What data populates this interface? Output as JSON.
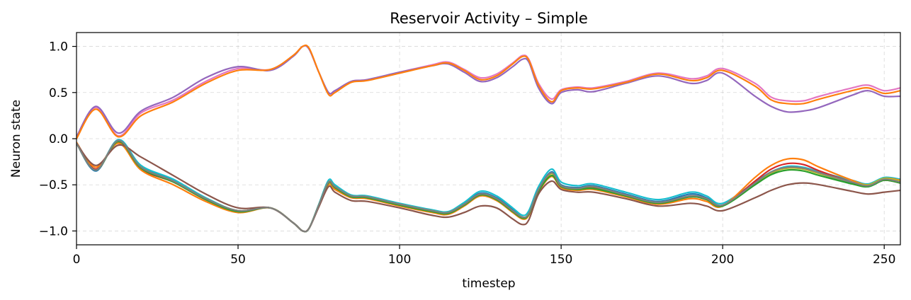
{
  "chart_data": {
    "type": "line",
    "title": "Reservoir Activity – Simple",
    "xlabel": "timestep",
    "ylabel": "Neuron state",
    "xlim": [
      0,
      255
    ],
    "ylim": [
      -1.15,
      1.15
    ],
    "xticks": [
      0,
      50,
      100,
      150,
      200,
      250
    ],
    "xtick_labels": [
      "0",
      "50",
      "100",
      "150",
      "200",
      "250"
    ],
    "yticks": [
      1.0,
      0.5,
      0.0,
      -0.5,
      -1.0
    ],
    "ytick_labels": [
      "1.0",
      "0.5",
      "0.0",
      "−0.5",
      "−1.0"
    ],
    "grid": true,
    "series": [
      {
        "color": "#e377c2",
        "x": [
          0,
          6,
          13,
          20,
          30,
          40,
          50,
          60,
          67,
          70,
          72,
          75,
          78,
          80,
          85,
          90,
          100,
          110,
          115,
          120,
          125,
          130,
          135,
          138,
          140,
          143,
          147,
          150,
          155,
          160,
          170,
          180,
          190,
          195,
          200,
          210,
          215,
          220,
          225,
          230,
          240,
          245,
          250,
          255
        ],
        "y": [
          0.02,
          0.34,
          0.03,
          0.28,
          0.42,
          0.62,
          0.76,
          0.75,
          0.9,
          1.0,
          0.97,
          0.72,
          0.5,
          0.52,
          0.62,
          0.64,
          0.72,
          0.8,
          0.83,
          0.75,
          0.66,
          0.7,
          0.82,
          0.9,
          0.86,
          0.6,
          0.43,
          0.53,
          0.56,
          0.55,
          0.62,
          0.71,
          0.65,
          0.68,
          0.76,
          0.6,
          0.45,
          0.41,
          0.41,
          0.46,
          0.55,
          0.58,
          0.52,
          0.55
        ]
      },
      {
        "color": "#9467bd",
        "x": [
          0,
          6,
          13,
          20,
          30,
          40,
          50,
          60,
          67,
          70,
          72,
          75,
          78,
          80,
          85,
          90,
          100,
          110,
          115,
          120,
          125,
          130,
          135,
          138,
          140,
          143,
          147,
          150,
          155,
          160,
          170,
          180,
          190,
          195,
          200,
          210,
          215,
          220,
          225,
          230,
          240,
          245,
          250,
          255
        ],
        "y": [
          0.02,
          0.35,
          0.06,
          0.3,
          0.45,
          0.66,
          0.78,
          0.74,
          0.89,
          1.0,
          0.97,
          0.72,
          0.5,
          0.52,
          0.62,
          0.64,
          0.72,
          0.79,
          0.81,
          0.72,
          0.62,
          0.66,
          0.78,
          0.86,
          0.83,
          0.55,
          0.38,
          0.5,
          0.53,
          0.51,
          0.6,
          0.68,
          0.6,
          0.63,
          0.71,
          0.46,
          0.35,
          0.29,
          0.3,
          0.34,
          0.47,
          0.52,
          0.46,
          0.46
        ]
      },
      {
        "color": "#ff7f0e",
        "x": [
          0,
          6,
          13,
          20,
          30,
          40,
          50,
          60,
          67,
          70,
          72,
          75,
          78,
          80,
          85,
          90,
          100,
          110,
          115,
          120,
          125,
          130,
          135,
          138,
          140,
          143,
          147,
          150,
          155,
          160,
          170,
          180,
          190,
          195,
          200,
          210,
          215,
          220,
          225,
          230,
          240,
          245,
          250,
          255
        ],
        "y": [
          0.0,
          0.32,
          0.02,
          0.25,
          0.4,
          0.6,
          0.74,
          0.75,
          0.9,
          1.0,
          0.98,
          0.72,
          0.48,
          0.5,
          0.61,
          0.63,
          0.71,
          0.79,
          0.82,
          0.74,
          0.64,
          0.68,
          0.81,
          0.89,
          0.85,
          0.58,
          0.4,
          0.52,
          0.55,
          0.54,
          0.61,
          0.7,
          0.63,
          0.66,
          0.74,
          0.57,
          0.42,
          0.38,
          0.38,
          0.43,
          0.52,
          0.55,
          0.49,
          0.52
        ]
      },
      {
        "color": "#1f77b4",
        "x": [
          0,
          6,
          13,
          20,
          30,
          40,
          50,
          60,
          67,
          70,
          72,
          75,
          78,
          80,
          85,
          90,
          100,
          110,
          115,
          120,
          125,
          130,
          135,
          138,
          140,
          143,
          147,
          150,
          155,
          160,
          170,
          180,
          190,
          195,
          200,
          210,
          215,
          220,
          225,
          230,
          240,
          245,
          250,
          255
        ],
        "y": [
          -0.05,
          -0.35,
          -0.02,
          -0.3,
          -0.45,
          -0.65,
          -0.78,
          -0.75,
          -0.91,
          -1.0,
          -0.97,
          -0.72,
          -0.47,
          -0.52,
          -0.62,
          -0.63,
          -0.71,
          -0.78,
          -0.8,
          -0.7,
          -0.59,
          -0.64,
          -0.77,
          -0.85,
          -0.81,
          -0.55,
          -0.36,
          -0.5,
          -0.53,
          -0.51,
          -0.6,
          -0.68,
          -0.6,
          -0.64,
          -0.72,
          -0.5,
          -0.38,
          -0.31,
          -0.32,
          -0.38,
          -0.48,
          -0.52,
          -0.45,
          -0.48
        ]
      },
      {
        "color": "#17becf",
        "x": [
          0,
          6,
          13,
          20,
          30,
          40,
          50,
          60,
          67,
          70,
          72,
          75,
          78,
          80,
          85,
          90,
          100,
          110,
          115,
          120,
          125,
          130,
          135,
          138,
          140,
          143,
          147,
          150,
          155,
          160,
          170,
          180,
          190,
          195,
          200,
          210,
          215,
          220,
          225,
          230,
          240,
          245,
          250,
          255
        ],
        "y": [
          -0.05,
          -0.34,
          -0.01,
          -0.29,
          -0.44,
          -0.64,
          -0.78,
          -0.75,
          -0.91,
          -1.0,
          -0.97,
          -0.71,
          -0.45,
          -0.5,
          -0.61,
          -0.62,
          -0.7,
          -0.77,
          -0.79,
          -0.69,
          -0.57,
          -0.62,
          -0.75,
          -0.83,
          -0.78,
          -0.52,
          -0.33,
          -0.47,
          -0.51,
          -0.49,
          -0.58,
          -0.66,
          -0.58,
          -0.62,
          -0.7,
          -0.47,
          -0.36,
          -0.3,
          -0.31,
          -0.36,
          -0.45,
          -0.49,
          -0.42,
          -0.44
        ]
      },
      {
        "color": "#d62728",
        "x": [
          0,
          6,
          13,
          20,
          30,
          40,
          50,
          60,
          67,
          70,
          72,
          75,
          78,
          80,
          85,
          90,
          100,
          110,
          115,
          120,
          125,
          130,
          135,
          138,
          140,
          143,
          147,
          150,
          155,
          160,
          170,
          180,
          190,
          195,
          200,
          210,
          215,
          220,
          225,
          230,
          240,
          245,
          250,
          255
        ],
        "y": [
          -0.05,
          -0.33,
          -0.04,
          -0.33,
          -0.47,
          -0.66,
          -0.79,
          -0.75,
          -0.91,
          -1.0,
          -0.97,
          -0.72,
          -0.48,
          -0.53,
          -0.63,
          -0.64,
          -0.72,
          -0.79,
          -0.81,
          -0.72,
          -0.61,
          -0.66,
          -0.79,
          -0.86,
          -0.82,
          -0.57,
          -0.4,
          -0.52,
          -0.55,
          -0.53,
          -0.61,
          -0.7,
          -0.63,
          -0.66,
          -0.73,
          -0.46,
          -0.33,
          -0.27,
          -0.28,
          -0.35,
          -0.47,
          -0.51,
          -0.45,
          -0.48
        ]
      },
      {
        "color": "#ff7f0e",
        "x": [
          0,
          6,
          13,
          20,
          30,
          40,
          50,
          60,
          67,
          70,
          72,
          75,
          78,
          80,
          85,
          90,
          100,
          110,
          115,
          120,
          125,
          130,
          135,
          138,
          140,
          143,
          147,
          150,
          155,
          160,
          170,
          180,
          190,
          195,
          200,
          210,
          215,
          220,
          225,
          230,
          240,
          245,
          250,
          255
        ],
        "y": [
          -0.04,
          -0.31,
          -0.05,
          -0.34,
          -0.5,
          -0.68,
          -0.8,
          -0.75,
          -0.91,
          -1.0,
          -0.97,
          -0.73,
          -0.5,
          -0.55,
          -0.64,
          -0.65,
          -0.73,
          -0.8,
          -0.82,
          -0.73,
          -0.62,
          -0.67,
          -0.8,
          -0.87,
          -0.83,
          -0.58,
          -0.41,
          -0.53,
          -0.56,
          -0.55,
          -0.63,
          -0.71,
          -0.65,
          -0.68,
          -0.73,
          -0.42,
          -0.29,
          -0.22,
          -0.23,
          -0.31,
          -0.45,
          -0.5,
          -0.43,
          -0.45
        ]
      },
      {
        "color": "#bcbd22",
        "x": [
          0,
          6,
          13,
          20,
          30,
          40,
          50,
          60,
          67,
          70,
          72,
          75,
          78,
          80,
          85,
          90,
          100,
          110,
          115,
          120,
          125,
          130,
          135,
          138,
          140,
          143,
          147,
          150,
          155,
          160,
          170,
          180,
          190,
          195,
          200,
          210,
          215,
          220,
          225,
          230,
          240,
          245,
          250,
          255
        ],
        "y": [
          -0.05,
          -0.34,
          -0.03,
          -0.31,
          -0.46,
          -0.65,
          -0.78,
          -0.75,
          -0.91,
          -1.0,
          -0.97,
          -0.72,
          -0.47,
          -0.52,
          -0.62,
          -0.63,
          -0.71,
          -0.78,
          -0.8,
          -0.71,
          -0.6,
          -0.65,
          -0.78,
          -0.85,
          -0.81,
          -0.56,
          -0.38,
          -0.51,
          -0.54,
          -0.52,
          -0.61,
          -0.69,
          -0.62,
          -0.65,
          -0.72,
          -0.49,
          -0.37,
          -0.32,
          -0.33,
          -0.38,
          -0.47,
          -0.5,
          -0.43,
          -0.46
        ]
      },
      {
        "color": "#2ca02c",
        "x": [
          0,
          6,
          13,
          20,
          30,
          40,
          50,
          60,
          67,
          70,
          72,
          75,
          78,
          80,
          85,
          90,
          100,
          110,
          115,
          120,
          125,
          130,
          135,
          138,
          140,
          143,
          147,
          150,
          155,
          160,
          170,
          180,
          190,
          195,
          200,
          210,
          215,
          220,
          225,
          230,
          240,
          245,
          250,
          255
        ],
        "y": [
          -0.05,
          -0.34,
          -0.03,
          -0.32,
          -0.47,
          -0.66,
          -0.79,
          -0.75,
          -0.91,
          -1.0,
          -0.97,
          -0.72,
          -0.48,
          -0.53,
          -0.63,
          -0.64,
          -0.72,
          -0.79,
          -0.81,
          -0.72,
          -0.61,
          -0.66,
          -0.79,
          -0.86,
          -0.82,
          -0.57,
          -0.4,
          -0.52,
          -0.55,
          -0.54,
          -0.62,
          -0.7,
          -0.63,
          -0.66,
          -0.73,
          -0.5,
          -0.39,
          -0.34,
          -0.35,
          -0.4,
          -0.49,
          -0.52,
          -0.45,
          -0.48
        ]
      },
      {
        "color": "#8c564b",
        "x": [
          0,
          6,
          13,
          20,
          30,
          40,
          50,
          60,
          67,
          70,
          72,
          75,
          78,
          80,
          85,
          90,
          100,
          110,
          115,
          120,
          125,
          130,
          135,
          138,
          140,
          143,
          147,
          150,
          155,
          160,
          170,
          180,
          190,
          195,
          200,
          210,
          215,
          220,
          225,
          230,
          240,
          245,
          250,
          255
        ],
        "y": [
          -0.05,
          -0.29,
          -0.07,
          -0.2,
          -0.4,
          -0.6,
          -0.75,
          -0.75,
          -0.91,
          -1.0,
          -0.97,
          -0.74,
          -0.52,
          -0.58,
          -0.67,
          -0.68,
          -0.75,
          -0.83,
          -0.85,
          -0.8,
          -0.73,
          -0.75,
          -0.87,
          -0.93,
          -0.88,
          -0.6,
          -0.46,
          -0.55,
          -0.58,
          -0.58,
          -0.65,
          -0.73,
          -0.7,
          -0.73,
          -0.78,
          -0.64,
          -0.56,
          -0.5,
          -0.48,
          -0.5,
          -0.57,
          -0.6,
          -0.58,
          -0.56
        ]
      },
      {
        "color": "#7f7f7f",
        "x": [
          0,
          6,
          13,
          20,
          30,
          40,
          50,
          60,
          67,
          70,
          72,
          75,
          78,
          80,
          85,
          90,
          100,
          110,
          115,
          120,
          125,
          130,
          135,
          138,
          140,
          143,
          147,
          150,
          155,
          160,
          170,
          180,
          190,
          195,
          200,
          210,
          215,
          220,
          225,
          230,
          240,
          245,
          250,
          255
        ],
        "y": [
          -0.05,
          -0.34,
          -0.02,
          -0.31,
          -0.46,
          -0.65,
          -0.78,
          -0.75,
          -0.91,
          -1.0,
          -0.97,
          -0.72,
          -0.47,
          -0.52,
          -0.62,
          -0.63,
          -0.71,
          -0.78,
          -0.8,
          -0.71,
          -0.6,
          -0.65,
          -0.78,
          -0.85,
          -0.81,
          -0.55,
          -0.37,
          -0.51,
          -0.54,
          -0.52,
          -0.61,
          -0.69,
          -0.62,
          -0.65,
          -0.72,
          -0.48,
          -0.36,
          -0.31,
          -0.32,
          -0.37,
          -0.47,
          -0.51,
          -0.44,
          -0.47
        ]
      }
    ]
  }
}
